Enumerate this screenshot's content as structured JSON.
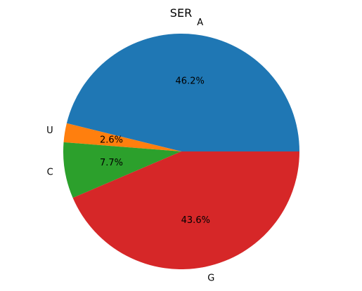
{
  "chart_data": {
    "type": "pie",
    "title": "SER",
    "slices": [
      {
        "label": "A",
        "value": 46.2,
        "pct_label": "46.2%",
        "color": "#1f77b4"
      },
      {
        "label": "U",
        "value": 2.6,
        "pct_label": "2.6%",
        "color": "#ff7f0e"
      },
      {
        "label": "C",
        "value": 7.7,
        "pct_label": "7.7%",
        "color": "#2ca02c"
      },
      {
        "label": "G",
        "value": 43.6,
        "pct_label": "43.6%",
        "color": "#d62728"
      }
    ],
    "start_angle_deg": 0,
    "direction": "counterclockwise",
    "legend": "none"
  }
}
